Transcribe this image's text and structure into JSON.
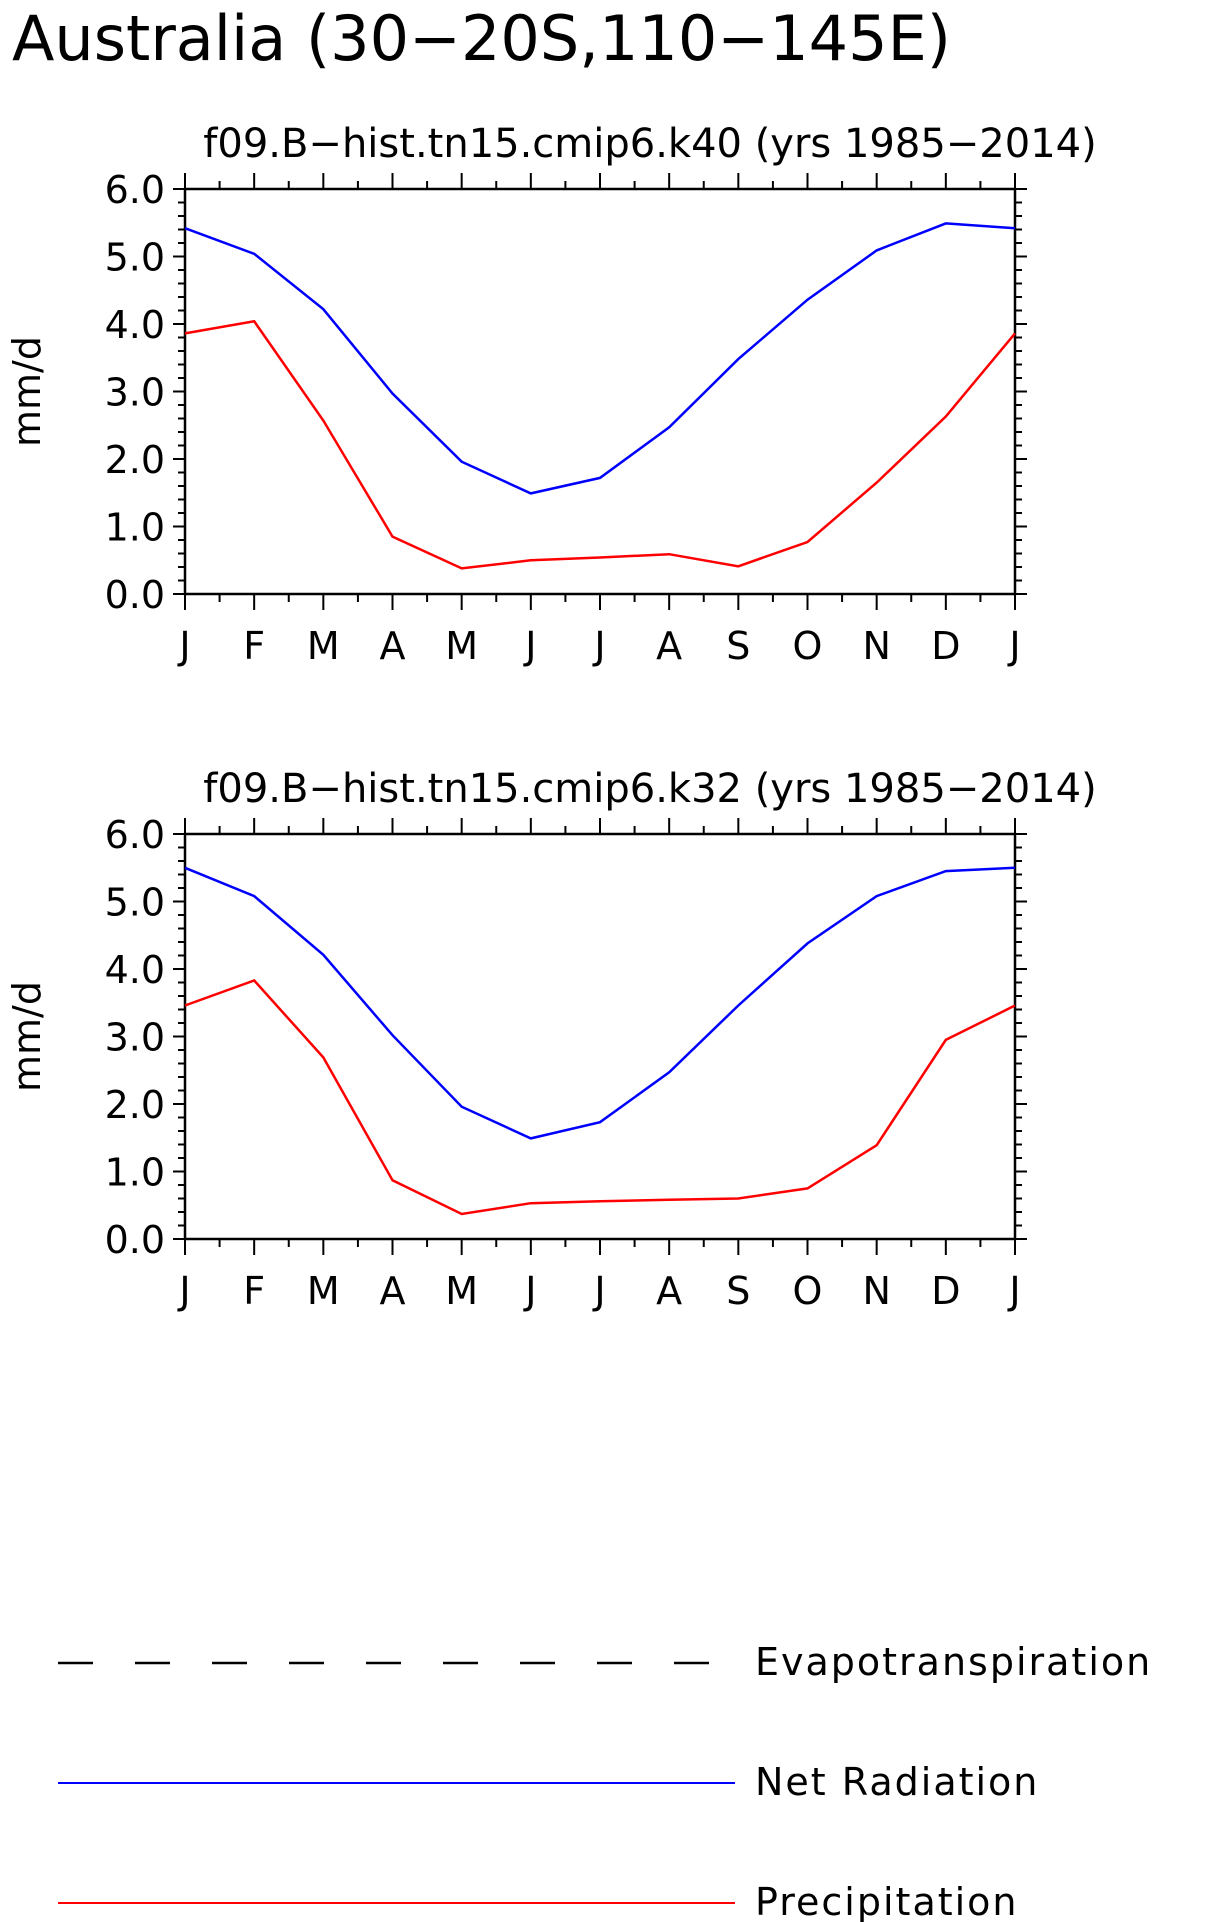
{
  "figure": {
    "title": "Australia (30−20S,110−145E)"
  },
  "chart_data": [
    {
      "type": "line",
      "title": "f09.B−hist.tn15.cmip6.k40 (yrs 1985−2014)",
      "xlabel": "",
      "ylabel": "mm/d",
      "ylim": [
        0,
        6
      ],
      "yticks": [
        "0.0",
        "1.0",
        "2.0",
        "3.0",
        "4.0",
        "5.0",
        "6.0"
      ],
      "categories": [
        "J",
        "F",
        "M",
        "A",
        "M",
        "J",
        "J",
        "A",
        "S",
        "O",
        "N",
        "D",
        "J"
      ],
      "grid": false,
      "series": [
        {
          "name": "Net Radiation",
          "color": "#0000ff",
          "dash": false,
          "values": [
            5.42,
            5.04,
            4.22,
            2.97,
            1.96,
            1.49,
            1.72,
            2.47,
            3.48,
            4.36,
            5.09,
            5.49,
            5.42
          ]
        },
        {
          "name": "Precipitation",
          "color": "#ff0000",
          "dash": false,
          "values": [
            3.86,
            4.04,
            2.57,
            0.85,
            0.38,
            0.5,
            0.54,
            0.59,
            0.41,
            0.77,
            1.65,
            2.63,
            3.86
          ]
        }
      ]
    },
    {
      "type": "line",
      "title": "f09.B−hist.tn15.cmip6.k32 (yrs 1985−2014)",
      "xlabel": "",
      "ylabel": "mm/d",
      "ylim": [
        0,
        6
      ],
      "yticks": [
        "0.0",
        "1.0",
        "2.0",
        "3.0",
        "4.0",
        "5.0",
        "6.0"
      ],
      "categories": [
        "J",
        "F",
        "M",
        "A",
        "M",
        "J",
        "J",
        "A",
        "S",
        "O",
        "N",
        "D",
        "J"
      ],
      "grid": false,
      "series": [
        {
          "name": "Net Radiation",
          "color": "#0000ff",
          "dash": false,
          "values": [
            5.5,
            5.08,
            4.21,
            3.02,
            1.96,
            1.49,
            1.73,
            2.47,
            3.46,
            4.38,
            5.08,
            5.45,
            5.5
          ]
        },
        {
          "name": "Precipitation",
          "color": "#ff0000",
          "dash": false,
          "values": [
            3.46,
            3.83,
            2.69,
            0.87,
            0.37,
            0.53,
            0.56,
            0.58,
            0.6,
            0.75,
            1.39,
            2.95,
            3.46
          ]
        }
      ]
    }
  ],
  "legend": {
    "placement": "bottom",
    "items": [
      {
        "label": "Evapotranspiration",
        "color": "#000000",
        "style": "dashed"
      },
      {
        "label": "Net Radiation",
        "color": "#0000ff",
        "style": "solid"
      },
      {
        "label": "Precipitation",
        "color": "#ff0000",
        "style": "solid"
      }
    ]
  }
}
